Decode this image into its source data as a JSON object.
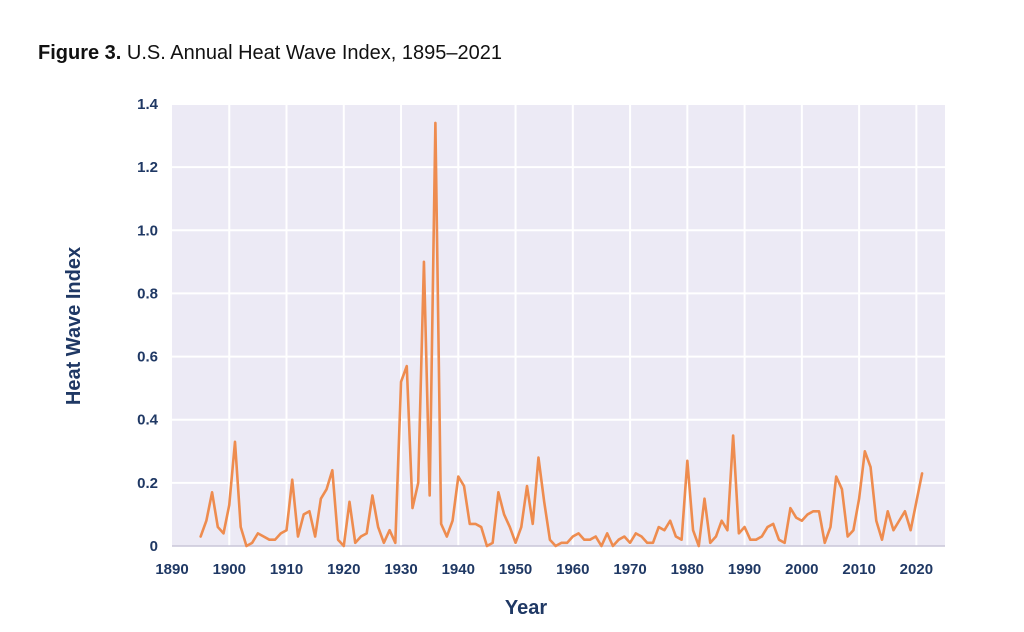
{
  "figure": {
    "number": "Figure 3.",
    "title": "U.S. Annual Heat Wave Index, 1895–2021"
  },
  "chart_data": {
    "type": "line",
    "xlabel": "Year",
    "ylabel": "Heat Wave Index",
    "xlim": [
      1890,
      2025
    ],
    "ylim": [
      0,
      1.4
    ],
    "x_ticks": [
      1890,
      1900,
      1910,
      1920,
      1930,
      1940,
      1950,
      1960,
      1970,
      1980,
      1990,
      2000,
      2010,
      2020
    ],
    "y_ticks": [
      0,
      0.2,
      0.4,
      0.6,
      0.8,
      1.0,
      1.2,
      1.4
    ],
    "y_tick_labels": [
      "0",
      "0.2",
      "0.4",
      "0.6",
      "0.8",
      "1.0",
      "1.2",
      "1.4"
    ],
    "grid": true,
    "colors": {
      "line": "#ee8c4f",
      "plot_bg": "#eceaf5",
      "grid": "#ffffff",
      "text": "#1f3864"
    },
    "x": [
      1895,
      1896,
      1897,
      1898,
      1899,
      1900,
      1901,
      1902,
      1903,
      1904,
      1905,
      1906,
      1907,
      1908,
      1909,
      1910,
      1911,
      1912,
      1913,
      1914,
      1915,
      1916,
      1917,
      1918,
      1919,
      1920,
      1921,
      1922,
      1923,
      1924,
      1925,
      1926,
      1927,
      1928,
      1929,
      1930,
      1931,
      1932,
      1933,
      1934,
      1935,
      1936,
      1937,
      1938,
      1939,
      1940,
      1941,
      1942,
      1943,
      1944,
      1945,
      1946,
      1947,
      1948,
      1949,
      1950,
      1951,
      1952,
      1953,
      1954,
      1955,
      1956,
      1957,
      1958,
      1959,
      1960,
      1961,
      1962,
      1963,
      1964,
      1965,
      1966,
      1967,
      1968,
      1969,
      1970,
      1971,
      1972,
      1973,
      1974,
      1975,
      1976,
      1977,
      1978,
      1979,
      1980,
      1981,
      1982,
      1983,
      1984,
      1985,
      1986,
      1987,
      1988,
      1989,
      1990,
      1991,
      1992,
      1993,
      1994,
      1995,
      1996,
      1997,
      1998,
      1999,
      2000,
      2001,
      2002,
      2003,
      2004,
      2005,
      2006,
      2007,
      2008,
      2009,
      2010,
      2011,
      2012,
      2013,
      2014,
      2015,
      2016,
      2017,
      2018,
      2019,
      2020,
      2021
    ],
    "y": [
      0.03,
      0.08,
      0.17,
      0.06,
      0.04,
      0.13,
      0.33,
      0.06,
      0.0,
      0.01,
      0.04,
      0.03,
      0.02,
      0.02,
      0.04,
      0.05,
      0.21,
      0.03,
      0.1,
      0.11,
      0.03,
      0.15,
      0.18,
      0.24,
      0.02,
      0.0,
      0.14,
      0.01,
      0.03,
      0.04,
      0.16,
      0.06,
      0.01,
      0.05,
      0.01,
      0.52,
      0.57,
      0.12,
      0.2,
      0.9,
      0.16,
      1.34,
      0.07,
      0.03,
      0.08,
      0.22,
      0.19,
      0.07,
      0.07,
      0.06,
      0.0,
      0.01,
      0.17,
      0.1,
      0.06,
      0.01,
      0.06,
      0.19,
      0.07,
      0.28,
      0.14,
      0.02,
      0.0,
      0.01,
      0.01,
      0.03,
      0.04,
      0.02,
      0.02,
      0.03,
      0.0,
      0.04,
      0.0,
      0.02,
      0.03,
      0.01,
      0.04,
      0.03,
      0.01,
      0.01,
      0.06,
      0.05,
      0.08,
      0.03,
      0.02,
      0.27,
      0.05,
      0.0,
      0.15,
      0.01,
      0.03,
      0.08,
      0.05,
      0.35,
      0.04,
      0.06,
      0.02,
      0.02,
      0.03,
      0.06,
      0.07,
      0.02,
      0.01,
      0.12,
      0.09,
      0.08,
      0.1,
      0.11,
      0.11,
      0.01,
      0.06,
      0.22,
      0.18,
      0.03,
      0.05,
      0.15,
      0.3,
      0.25,
      0.08,
      0.02,
      0.11,
      0.05,
      0.08,
      0.11,
      0.05,
      0.14,
      0.23
    ]
  }
}
